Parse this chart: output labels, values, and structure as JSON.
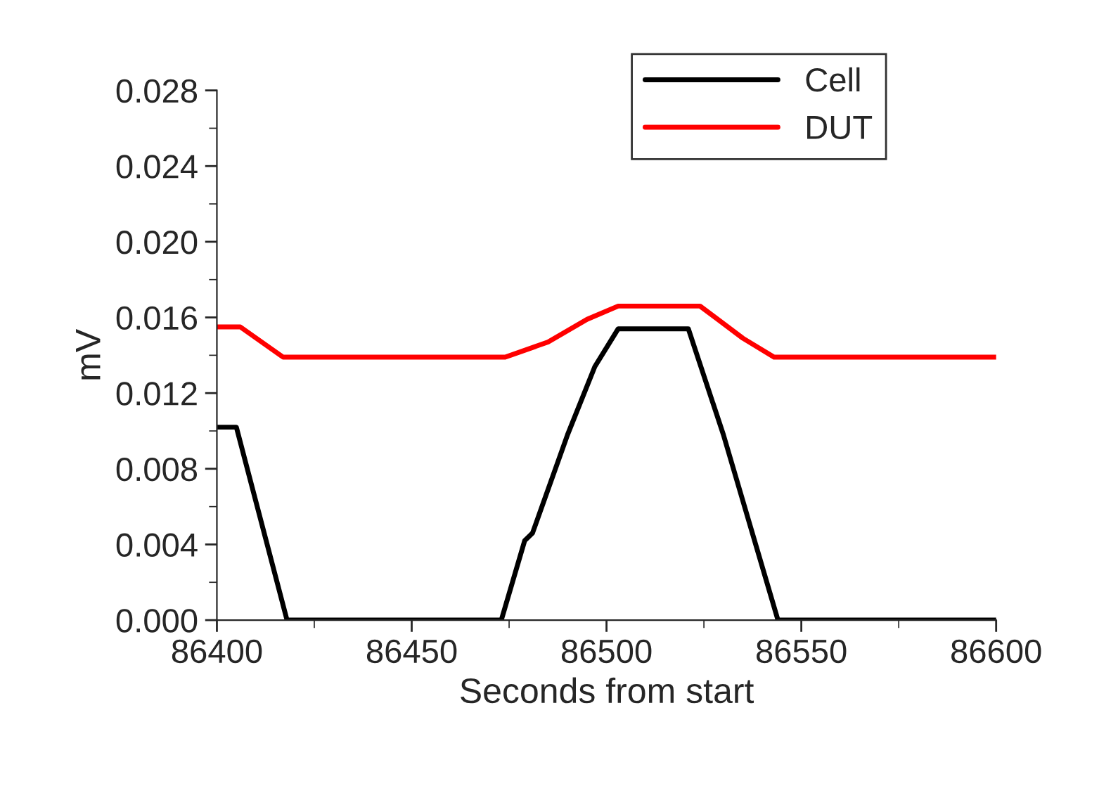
{
  "chart_data": {
    "type": "line",
    "xlabel": "Seconds from start",
    "ylabel": "mV",
    "xlim": [
      86400,
      86600
    ],
    "xticks": [
      86400,
      86450,
      86500,
      86550,
      86600
    ],
    "ylim": [
      0,
      0.028
    ],
    "yticks": [
      {
        "value": 0,
        "label": "0.000"
      },
      {
        "value": 0.004,
        "label": "0.004"
      },
      {
        "value": 0.008,
        "label": "0.008"
      },
      {
        "value": 0.012,
        "label": "0.012"
      },
      {
        "value": 0.016,
        "label": "0.016"
      },
      {
        "value": 0.02,
        "label": "0.020"
      },
      {
        "value": 0.024,
        "label": "0.024"
      },
      {
        "value": 0.028,
        "label": "0.028"
      }
    ],
    "grid": false,
    "legend": "top right",
    "marker": "none",
    "line_style": "solid",
    "series": [
      {
        "name": "Cell",
        "color": "#000000",
        "x": [
          86400,
          86405,
          86418,
          86473,
          86479,
          86481,
          86490,
          86497,
          86503,
          86521,
          86530,
          86544,
          86600
        ],
        "values": [
          0.0102,
          0.0102,
          0.0,
          0.0,
          0.0042,
          0.0046,
          0.0098,
          0.0134,
          0.0154,
          0.0154,
          0.0098,
          0.0,
          0.0
        ]
      },
      {
        "name": "DUT",
        "color": "#ff0000",
        "x": [
          86400,
          86406,
          86417,
          86474,
          86485,
          86495,
          86503,
          86524,
          86535,
          86543,
          86600
        ],
        "values": [
          0.0155,
          0.0155,
          0.0139,
          0.0139,
          0.0147,
          0.0159,
          0.0166,
          0.0166,
          0.0149,
          0.0139,
          0.0139
        ]
      }
    ]
  }
}
